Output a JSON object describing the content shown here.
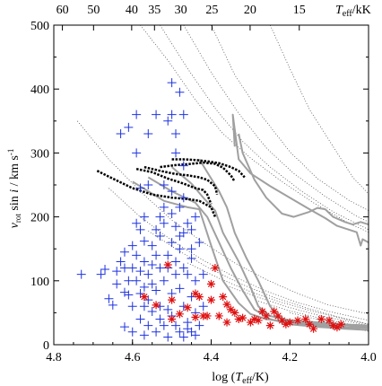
{
  "chart_data": {
    "type": "scatter",
    "xlabel": "log (T_eff/K)",
    "ylabel": "v_rot sin i / km s^-1",
    "top_axis_label": "T_eff/kK",
    "x_range": [
      4.8,
      4.0
    ],
    "x_reversed": true,
    "ylim": [
      0,
      500
    ],
    "x_ticks": [
      4.8,
      4.6,
      4.4,
      4.2,
      4.0
    ],
    "x_tick_labels": [
      "4.8",
      "4.6",
      "4.4",
      "4.2",
      "4.0"
    ],
    "y_ticks": [
      0,
      100,
      200,
      300,
      400,
      500
    ],
    "y_tick_labels": [
      "0",
      "100",
      "200",
      "300",
      "400",
      "500"
    ],
    "top_ticks_kK": [
      60,
      50,
      40,
      35,
      30,
      25,
      20,
      15
    ],
    "top_tick_labels": [
      "60",
      "50",
      "40",
      "35",
      "30",
      "25",
      "20",
      "15"
    ],
    "critical_curves": [
      [
        [
          4.58,
          500
        ],
        [
          4.51,
          445
        ],
        [
          4.44,
          383
        ],
        [
          4.37,
          330
        ],
        [
          4.3,
          292
        ],
        [
          4.22,
          255
        ],
        [
          4.14,
          222
        ],
        [
          4.05,
          190
        ],
        [
          4.0,
          176
        ]
      ],
      [
        [
          4.53,
          500
        ],
        [
          4.46,
          432
        ],
        [
          4.39,
          370
        ],
        [
          4.32,
          318
        ],
        [
          4.25,
          278
        ],
        [
          4.17,
          240
        ],
        [
          4.09,
          208
        ],
        [
          4.0,
          180
        ]
      ],
      [
        [
          4.47,
          500
        ],
        [
          4.4,
          426
        ],
        [
          4.33,
          362
        ],
        [
          4.26,
          308
        ],
        [
          4.19,
          268
        ],
        [
          4.11,
          232
        ],
        [
          4.03,
          201
        ],
        [
          4.0,
          192
        ]
      ],
      [
        [
          4.4,
          500
        ],
        [
          4.34,
          422
        ],
        [
          4.27,
          357
        ],
        [
          4.2,
          302
        ],
        [
          4.13,
          260
        ],
        [
          4.05,
          226
        ],
        [
          4.0,
          210
        ]
      ],
      [
        [
          4.25,
          500
        ],
        [
          4.2,
          432
        ],
        [
          4.15,
          368
        ],
        [
          4.09,
          310
        ],
        [
          4.04,
          262
        ],
        [
          4.0,
          236
        ]
      ],
      [
        [
          4.74,
          350
        ],
        [
          4.66,
          290
        ],
        [
          4.58,
          240
        ],
        [
          4.5,
          195
        ],
        [
          4.42,
          160
        ],
        [
          4.34,
          128
        ],
        [
          4.26,
          102
        ],
        [
          4.18,
          80
        ],
        [
          4.1,
          62
        ],
        [
          4.0,
          48
        ]
      ],
      [
        [
          4.66,
          245
        ],
        [
          4.58,
          200
        ],
        [
          4.5,
          163
        ],
        [
          4.42,
          132
        ],
        [
          4.34,
          106
        ],
        [
          4.26,
          84
        ],
        [
          4.18,
          66
        ],
        [
          4.1,
          52
        ],
        [
          4.0,
          38
        ]
      ],
      [
        [
          4.56,
          178
        ],
        [
          4.48,
          146
        ],
        [
          4.4,
          118
        ],
        [
          4.32,
          94
        ],
        [
          4.24,
          74
        ],
        [
          4.16,
          58
        ],
        [
          4.08,
          44
        ],
        [
          4.0,
          32
        ]
      ],
      [
        [
          4.46,
          128
        ],
        [
          4.38,
          104
        ],
        [
          4.3,
          83
        ],
        [
          4.22,
          66
        ],
        [
          4.14,
          52
        ],
        [
          4.06,
          40
        ],
        [
          4.0,
          32
        ]
      ],
      [
        [
          4.36,
          92
        ],
        [
          4.28,
          74
        ],
        [
          4.2,
          58
        ],
        [
          4.12,
          45
        ],
        [
          4.04,
          35
        ],
        [
          4.0,
          30
        ]
      ],
      [
        [
          4.28,
          68
        ],
        [
          4.2,
          53
        ],
        [
          4.12,
          41
        ],
        [
          4.04,
          31
        ],
        [
          4.0,
          27
        ]
      ],
      [
        [
          4.2,
          50
        ],
        [
          4.12,
          38
        ],
        [
          4.04,
          29
        ],
        [
          4.0,
          25
        ]
      ],
      [
        [
          4.12,
          36
        ],
        [
          4.05,
          27
        ],
        [
          4.0,
          22
        ]
      ],
      [
        [
          4.05,
          27
        ],
        [
          4.0,
          21
        ]
      ]
    ],
    "gray_tracks": [
      [
        [
          4.34,
          310
        ],
        [
          4.345,
          360
        ],
        [
          4.33,
          290
        ],
        [
          4.3,
          268
        ],
        [
          4.25,
          248
        ],
        [
          4.2,
          230
        ],
        [
          4.15,
          212
        ],
        [
          4.11,
          198
        ],
        [
          4.08,
          186
        ],
        [
          4.06,
          182
        ],
        [
          4.03,
          176
        ],
        [
          4.02,
          155
        ],
        [
          4.015,
          165
        ],
        [
          4.0,
          160
        ]
      ],
      [
        [
          4.33,
          330
        ],
        [
          4.32,
          300
        ],
        [
          4.29,
          258
        ],
        [
          4.26,
          230
        ],
        [
          4.22,
          205
        ],
        [
          4.19,
          200
        ],
        [
          4.15,
          208
        ],
        [
          4.13,
          214
        ],
        [
          4.11,
          212
        ],
        [
          4.09,
          200
        ],
        [
          4.06,
          192
        ],
        [
          4.04,
          188
        ],
        [
          4.02,
          192
        ],
        [
          4.0,
          188
        ]
      ],
      [
        [
          4.43,
          290
        ],
        [
          4.4,
          260
        ],
        [
          4.38,
          240
        ],
        [
          4.36,
          215
        ],
        [
          4.34,
          175
        ],
        [
          4.31,
          135
        ],
        [
          4.28,
          100
        ],
        [
          4.25,
          60
        ],
        [
          4.22,
          40
        ],
        [
          4.18,
          33
        ],
        [
          4.12,
          30
        ],
        [
          4.06,
          27
        ],
        [
          4.0,
          26
        ]
      ],
      [
        [
          4.5,
          278
        ],
        [
          4.45,
          252
        ],
        [
          4.42,
          230
        ],
        [
          4.39,
          210
        ],
        [
          4.37,
          175
        ],
        [
          4.33,
          130
        ],
        [
          4.3,
          90
        ],
        [
          4.28,
          60
        ],
        [
          4.25,
          45
        ],
        [
          4.2,
          38
        ],
        [
          4.13,
          35
        ],
        [
          4.07,
          32
        ],
        [
          4.0,
          30
        ]
      ],
      [
        [
          4.56,
          262
        ],
        [
          4.5,
          240
        ],
        [
          4.44,
          222
        ],
        [
          4.41,
          200
        ],
        [
          4.38,
          160
        ],
        [
          4.35,
          120
        ],
        [
          4.32,
          85
        ],
        [
          4.29,
          55
        ],
        [
          4.25,
          40
        ],
        [
          4.2,
          32
        ],
        [
          4.13,
          28
        ],
        [
          4.06,
          25
        ],
        [
          4.0,
          23
        ]
      ],
      [
        [
          4.6,
          255
        ],
        [
          4.52,
          225
        ],
        [
          4.46,
          215
        ],
        [
          4.43,
          212
        ],
        [
          4.4,
          155
        ],
        [
          4.37,
          100
        ],
        [
          4.33,
          65
        ],
        [
          4.3,
          48
        ],
        [
          4.26,
          40
        ],
        [
          4.2,
          35
        ],
        [
          4.12,
          32
        ],
        [
          4.06,
          30
        ],
        [
          4.0,
          28
        ]
      ]
    ],
    "black_tracks": [
      [
        [
          4.5,
          290
        ],
        [
          4.47,
          290
        ],
        [
          4.44,
          289
        ],
        [
          4.41,
          287
        ],
        [
          4.38,
          284
        ],
        [
          4.35,
          278
        ],
        [
          4.33,
          272
        ],
        [
          4.315,
          262
        ]
      ],
      [
        [
          4.53,
          278
        ],
        [
          4.49,
          281
        ],
        [
          4.45,
          283
        ],
        [
          4.42,
          285
        ],
        [
          4.39,
          283
        ],
        [
          4.37,
          277
        ],
        [
          4.35,
          265
        ],
        [
          4.34,
          255
        ]
      ],
      [
        [
          4.57,
          278
        ],
        [
          4.53,
          272
        ],
        [
          4.49,
          267
        ],
        [
          4.46,
          265
        ],
        [
          4.43,
          262
        ],
        [
          4.41,
          258
        ],
        [
          4.39,
          248
        ],
        [
          4.385,
          235
        ]
      ],
      [
        [
          4.69,
          272
        ],
        [
          4.65,
          260
        ],
        [
          4.6,
          245
        ],
        [
          4.55,
          235
        ],
        [
          4.5,
          230
        ],
        [
          4.46,
          228
        ],
        [
          4.43,
          225
        ],
        [
          4.4,
          215
        ],
        [
          4.39,
          200
        ]
      ],
      [
        [
          4.59,
          275
        ],
        [
          4.55,
          270
        ],
        [
          4.51,
          260
        ],
        [
          4.47,
          252
        ],
        [
          4.44,
          245
        ],
        [
          4.42,
          242
        ],
        [
          4.41,
          235
        ],
        [
          4.4,
          220
        ]
      ]
    ],
    "blue_plus": [
      [
        4.73,
        110
      ],
      [
        4.68,
        110
      ],
      [
        4.67,
        118
      ],
      [
        4.66,
        72
      ],
      [
        4.65,
        62
      ],
      [
        4.64,
        115
      ],
      [
        4.64,
        95
      ],
      [
        4.63,
        130
      ],
      [
        4.63,
        330
      ],
      [
        4.62,
        145
      ],
      [
        4.62,
        82
      ],
      [
        4.62,
        120
      ],
      [
        4.62,
        28
      ],
      [
        4.61,
        340
      ],
      [
        4.61,
        78
      ],
      [
        4.61,
        100
      ],
      [
        4.6,
        155
      ],
      [
        4.6,
        120
      ],
      [
        4.6,
        60
      ],
      [
        4.6,
        20
      ],
      [
        4.59,
        360
      ],
      [
        4.59,
        300
      ],
      [
        4.59,
        190
      ],
      [
        4.59,
        100
      ],
      [
        4.59,
        140
      ],
      [
        4.58,
        245
      ],
      [
        4.58,
        180
      ],
      [
        4.58,
        115
      ],
      [
        4.58,
        80
      ],
      [
        4.58,
        40
      ],
      [
        4.57,
        200
      ],
      [
        4.57,
        162
      ],
      [
        4.57,
        130
      ],
      [
        4.57,
        90
      ],
      [
        4.57,
        60
      ],
      [
        4.57,
        15
      ],
      [
        4.56,
        330
      ],
      [
        4.56,
        250
      ],
      [
        4.56,
        110
      ],
      [
        4.56,
        70
      ],
      [
        4.56,
        30
      ],
      [
        4.55,
        155
      ],
      [
        4.55,
        125
      ],
      [
        4.55,
        95
      ],
      [
        4.55,
        52
      ],
      [
        4.54,
        360
      ],
      [
        4.54,
        180
      ],
      [
        4.54,
        140
      ],
      [
        4.54,
        85
      ],
      [
        4.54,
        20
      ],
      [
        4.53,
        200
      ],
      [
        4.53,
        120
      ],
      [
        4.53,
        170
      ],
      [
        4.53,
        60
      ],
      [
        4.53,
        40
      ],
      [
        4.52,
        250
      ],
      [
        4.52,
        215
      ],
      [
        4.52,
        190
      ],
      [
        4.52,
        100
      ],
      [
        4.52,
        30
      ],
      [
        4.51,
        350
      ],
      [
        4.51,
        120
      ],
      [
        4.51,
        140
      ],
      [
        4.51,
        55
      ],
      [
        4.51,
        12
      ],
      [
        4.5,
        410
      ],
      [
        4.5,
        360
      ],
      [
        4.5,
        240
      ],
      [
        4.5,
        205
      ],
      [
        4.5,
        160
      ],
      [
        4.5,
        80
      ],
      [
        4.5,
        45
      ],
      [
        4.49,
        330
      ],
      [
        4.49,
        300
      ],
      [
        4.49,
        185
      ],
      [
        4.49,
        110
      ],
      [
        4.49,
        130
      ],
      [
        4.49,
        30
      ],
      [
        4.48,
        395
      ],
      [
        4.48,
        215
      ],
      [
        4.48,
        170
      ],
      [
        4.48,
        150
      ],
      [
        4.48,
        88
      ],
      [
        4.48,
        20
      ],
      [
        4.47,
        360
      ],
      [
        4.47,
        280
      ],
      [
        4.47,
        230
      ],
      [
        4.47,
        175
      ],
      [
        4.47,
        120
      ],
      [
        4.47,
        60
      ],
      [
        4.47,
        12
      ],
      [
        4.46,
        190
      ],
      [
        4.46,
        110
      ],
      [
        4.46,
        35
      ],
      [
        4.45,
        180
      ],
      [
        4.45,
        150
      ],
      [
        4.45,
        135
      ],
      [
        4.45,
        75
      ],
      [
        4.45,
        20
      ],
      [
        4.44,
        200
      ],
      [
        4.44,
        100
      ],
      [
        4.44,
        50
      ],
      [
        4.43,
        160
      ],
      [
        4.43,
        30
      ],
      [
        4.42,
        110
      ],
      [
        4.42,
        60
      ],
      [
        4.46,
        25
      ],
      [
        4.44,
        15
      ]
    ],
    "red_stars": [
      [
        4.57,
        75
      ],
      [
        4.54,
        62
      ],
      [
        4.51,
        125
      ],
      [
        4.5,
        70
      ],
      [
        4.5,
        40
      ],
      [
        4.48,
        48
      ],
      [
        4.46,
        58
      ],
      [
        4.44,
        80
      ],
      [
        4.44,
        43
      ],
      [
        4.43,
        75
      ],
      [
        4.42,
        45
      ],
      [
        4.41,
        45
      ],
      [
        4.4,
        95
      ],
      [
        4.4,
        70
      ],
      [
        4.39,
        120
      ],
      [
        4.38,
        45
      ],
      [
        4.37,
        75
      ],
      [
        4.36,
        63
      ],
      [
        4.36,
        35
      ],
      [
        4.35,
        55
      ],
      [
        4.34,
        50
      ],
      [
        4.33,
        40
      ],
      [
        4.32,
        42
      ],
      [
        4.3,
        35
      ],
      [
        4.29,
        40
      ],
      [
        4.28,
        38
      ],
      [
        4.27,
        52
      ],
      [
        4.26,
        45
      ],
      [
        4.25,
        30
      ],
      [
        4.24,
        52
      ],
      [
        4.23,
        45
      ],
      [
        4.22,
        38
      ],
      [
        4.21,
        32
      ],
      [
        4.2,
        35
      ],
      [
        4.18,
        38
      ],
      [
        4.16,
        40
      ],
      [
        4.15,
        32
      ],
      [
        4.14,
        25
      ],
      [
        4.12,
        40
      ],
      [
        4.1,
        38
      ],
      [
        4.09,
        30
      ],
      [
        4.08,
        27
      ],
      [
        4.07,
        32
      ]
    ]
  }
}
